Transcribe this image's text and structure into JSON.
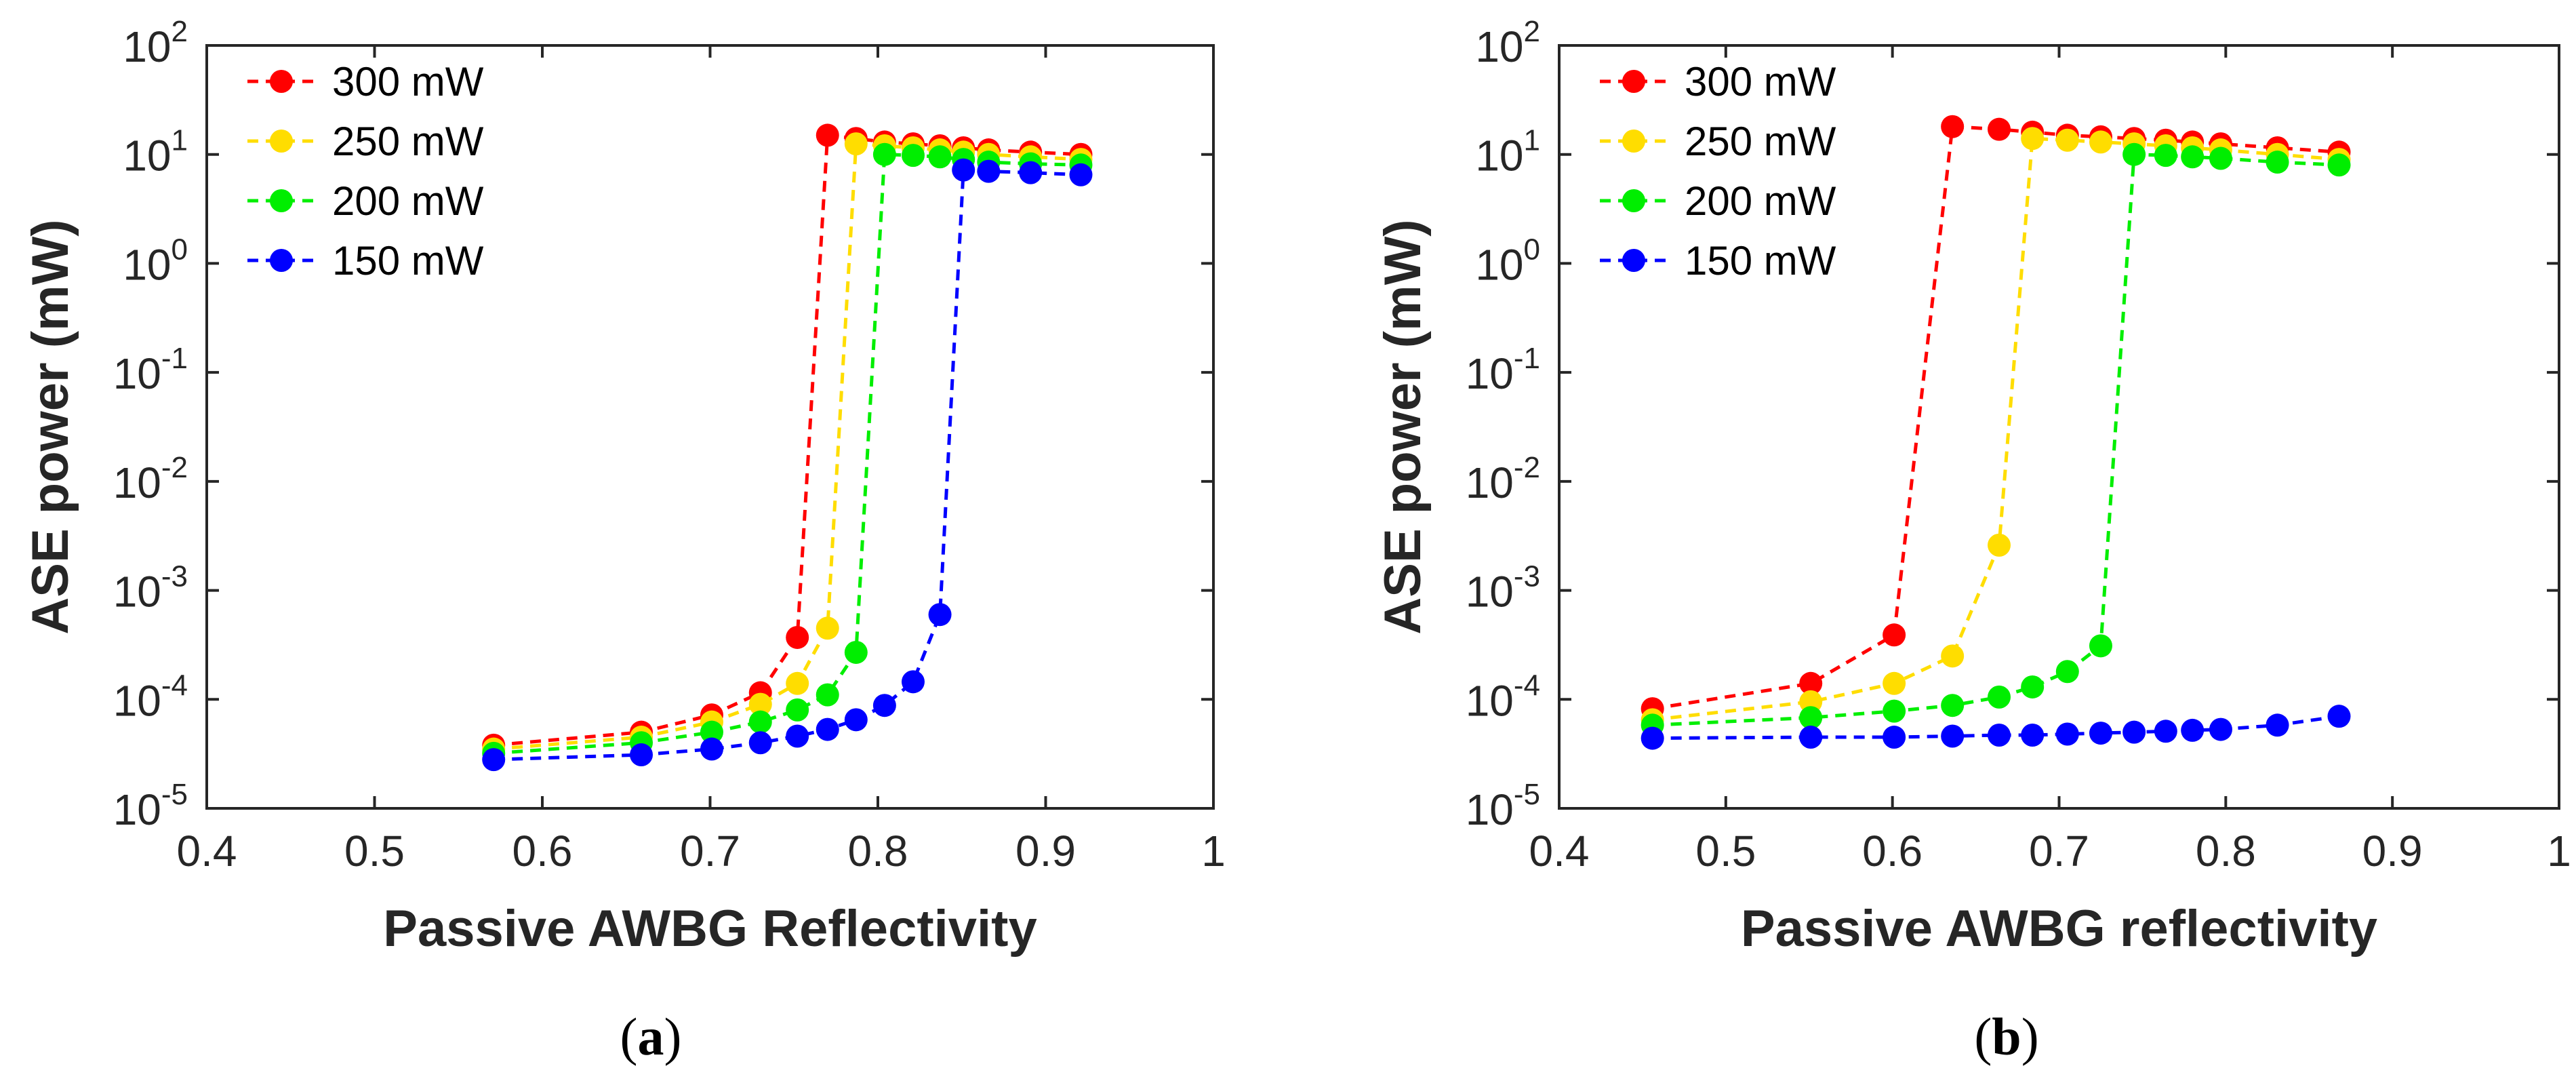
{
  "chart_data": [
    {
      "type": "scatter",
      "panel_label": "a",
      "xlabel": "Passive AWBG Reflectivity",
      "ylabel": "ASE power (mW)",
      "xlim": [
        0.4,
        1
      ],
      "ylim": [
        1e-05,
        100
      ],
      "yscale": "log",
      "xticks": [
        "0.4",
        "0.5",
        "0.6",
        "0.7",
        "0.8",
        "0.9",
        "1"
      ],
      "yticks": [
        {
          "base": "10",
          "exp": "-5"
        },
        {
          "base": "10",
          "exp": "-4"
        },
        {
          "base": "10",
          "exp": "-3"
        },
        {
          "base": "10",
          "exp": "-2"
        },
        {
          "base": "10",
          "exp": "-1"
        },
        {
          "base": "10",
          "exp": "0"
        },
        {
          "base": "10",
          "exp": "1"
        },
        {
          "base": "10",
          "exp": "2"
        }
      ],
      "legend_position": "top-left",
      "series": [
        {
          "name": "300 mW",
          "color": "#ff0000",
          "x": [
            0.571,
            0.659,
            0.701,
            0.73,
            0.752,
            0.77,
            0.787,
            0.804,
            0.821,
            0.837,
            0.851,
            0.866,
            0.891,
            0.921
          ],
          "y": [
            3.8e-05,
            5e-05,
            7.2e-05,
            0.000115,
            0.00037,
            15,
            14,
            13,
            12.5,
            12,
            11.5,
            11,
            10.5,
            10
          ]
        },
        {
          "name": "250 mW",
          "color": "#ffdd00",
          "x": [
            0.571,
            0.659,
            0.701,
            0.73,
            0.752,
            0.77,
            0.787,
            0.804,
            0.821,
            0.837,
            0.851,
            0.866,
            0.891,
            0.921
          ],
          "y": [
            3.5e-05,
            4.5e-05,
            6.2e-05,
            9e-05,
            0.00014,
            0.00045,
            12.5,
            12,
            11.5,
            11,
            10.5,
            10,
            9.5,
            9
          ]
        },
        {
          "name": "200 mW",
          "color": "#00ee00",
          "x": [
            0.571,
            0.659,
            0.701,
            0.73,
            0.752,
            0.77,
            0.787,
            0.804,
            0.821,
            0.837,
            0.851,
            0.866,
            0.891,
            0.921
          ],
          "y": [
            3.2e-05,
            4e-05,
            5e-05,
            6.2e-05,
            8e-05,
            0.00011,
            0.00027,
            10,
            9.8,
            9.5,
            9,
            8.5,
            8.2,
            8
          ]
        },
        {
          "name": "150 mW",
          "color": "#0000ff",
          "x": [
            0.571,
            0.659,
            0.701,
            0.73,
            0.752,
            0.77,
            0.787,
            0.804,
            0.821,
            0.837,
            0.851,
            0.866,
            0.891,
            0.921
          ],
          "y": [
            2.8e-05,
            3.1e-05,
            3.5e-05,
            4e-05,
            4.6e-05,
            5.3e-05,
            6.5e-05,
            8.8e-05,
            0.000145,
            0.0006,
            7.2,
            7,
            6.8,
            6.5
          ]
        }
      ]
    },
    {
      "type": "scatter",
      "panel_label": "b",
      "xlabel": "Passive AWBG reflectivity",
      "ylabel": "ASE power (mW)",
      "xlim": [
        0.4,
        1
      ],
      "ylim": [
        1e-05,
        100
      ],
      "yscale": "log",
      "xticks": [
        "0.4",
        "0.5",
        "0.6",
        "0.7",
        "0.8",
        "0.9",
        "1"
      ],
      "yticks": [
        {
          "base": "10",
          "exp": "-5"
        },
        {
          "base": "10",
          "exp": "-4"
        },
        {
          "base": "10",
          "exp": "-3"
        },
        {
          "base": "10",
          "exp": "-2"
        },
        {
          "base": "10",
          "exp": "-1"
        },
        {
          "base": "10",
          "exp": "0"
        },
        {
          "base": "10",
          "exp": "1"
        },
        {
          "base": "10",
          "exp": "2"
        }
      ],
      "legend_position": "top-left",
      "series": [
        {
          "name": "300 mW",
          "color": "#ff0000",
          "x": [
            0.456,
            0.551,
            0.601,
            0.636,
            0.664,
            0.684,
            0.705,
            0.725,
            0.745,
            0.764,
            0.78,
            0.797,
            0.831,
            0.868
          ],
          "y": [
            8.2e-05,
            0.00014,
            0.00039,
            18,
            17,
            16,
            15,
            14.5,
            14,
            13.5,
            13,
            12.5,
            11.5,
            10.5
          ]
        },
        {
          "name": "250 mW",
          "color": "#ffdd00",
          "x": [
            0.456,
            0.551,
            0.601,
            0.636,
            0.664,
            0.684,
            0.705,
            0.725,
            0.745,
            0.764,
            0.78,
            0.797,
            0.831,
            0.868
          ],
          "y": [
            6.5e-05,
            9.5e-05,
            0.00014,
            0.00025,
            0.0026,
            14,
            13.5,
            13,
            12.5,
            12,
            11.5,
            11,
            10,
            9
          ]
        },
        {
          "name": "200 mW",
          "color": "#00ee00",
          "x": [
            0.456,
            0.551,
            0.601,
            0.636,
            0.664,
            0.684,
            0.705,
            0.725,
            0.745,
            0.764,
            0.78,
            0.797,
            0.831,
            0.868
          ],
          "y": [
            5.8e-05,
            6.8e-05,
            7.8e-05,
            8.8e-05,
            0.000105,
            0.00013,
            0.00018,
            0.00031,
            10,
            9.8,
            9.5,
            9.2,
            8.5,
            8
          ]
        },
        {
          "name": "150 mW",
          "color": "#0000ff",
          "x": [
            0.456,
            0.551,
            0.601,
            0.636,
            0.664,
            0.684,
            0.705,
            0.725,
            0.745,
            0.764,
            0.78,
            0.797,
            0.831,
            0.868
          ],
          "y": [
            4.4e-05,
            4.5e-05,
            4.5e-05,
            4.6e-05,
            4.7e-05,
            4.7e-05,
            4.8e-05,
            4.9e-05,
            5e-05,
            5.1e-05,
            5.2e-05,
            5.3e-05,
            5.8e-05,
            7e-05
          ]
        }
      ]
    }
  ]
}
